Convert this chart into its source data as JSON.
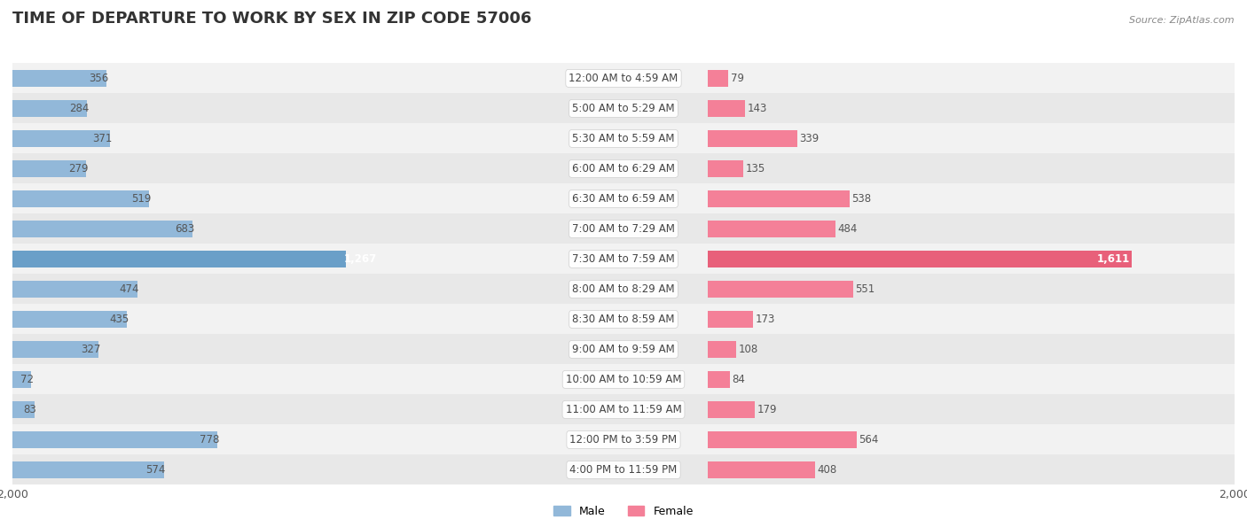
{
  "title": "TIME OF DEPARTURE TO WORK BY SEX IN ZIP CODE 57006",
  "source": "Source: ZipAtlas.com",
  "categories": [
    "12:00 AM to 4:59 AM",
    "5:00 AM to 5:29 AM",
    "5:30 AM to 5:59 AM",
    "6:00 AM to 6:29 AM",
    "6:30 AM to 6:59 AM",
    "7:00 AM to 7:29 AM",
    "7:30 AM to 7:59 AM",
    "8:00 AM to 8:29 AM",
    "8:30 AM to 8:59 AM",
    "9:00 AM to 9:59 AM",
    "10:00 AM to 10:59 AM",
    "11:00 AM to 11:59 AM",
    "12:00 PM to 3:59 PM",
    "4:00 PM to 11:59 PM"
  ],
  "male_values": [
    356,
    284,
    371,
    279,
    519,
    683,
    1267,
    474,
    435,
    327,
    72,
    83,
    778,
    574
  ],
  "female_values": [
    79,
    143,
    339,
    135,
    538,
    484,
    1611,
    551,
    173,
    108,
    84,
    179,
    564,
    408
  ],
  "male_color": "#92b8d9",
  "female_color": "#f48098",
  "male_color_max": "#6a9fc8",
  "female_color_max": "#e8607a",
  "row_bg_even": "#f0f0f0",
  "row_bg_odd": "#e4e4e4",
  "max_val": 2000,
  "title_fontsize": 13,
  "tick_fontsize": 9,
  "legend_male": "Male",
  "legend_female": "Female",
  "value_fontsize": 8.5,
  "cat_fontsize": 8.5
}
